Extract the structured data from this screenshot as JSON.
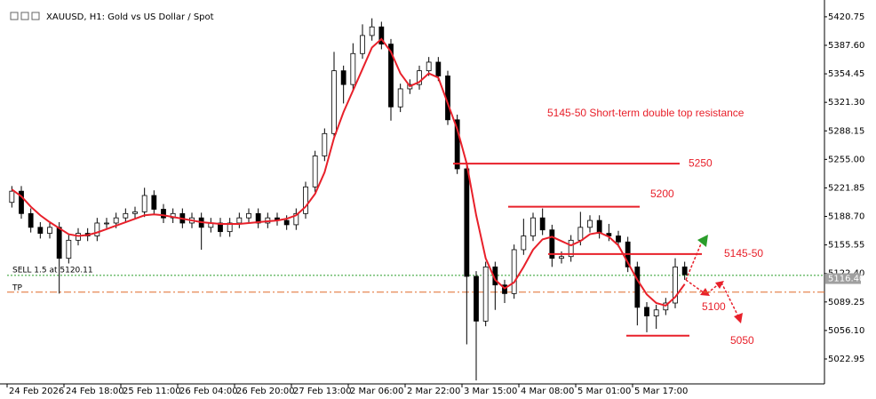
{
  "chart_data": {
    "type": "candlestick",
    "title": "XAUUSD, H1:  Gold vs US Dollar / Spot",
    "categories": [
      "24 Feb 2026",
      null,
      null,
      null,
      null,
      null,
      "24 Feb 18:00",
      null,
      null,
      null,
      null,
      null,
      "25 Feb 11:00",
      null,
      null,
      null,
      null,
      null,
      "26 Feb 04:00",
      null,
      null,
      null,
      null,
      null,
      "26 Feb 20:00",
      null,
      null,
      null,
      null,
      null,
      "27 Feb 13:00",
      null,
      null,
      null,
      null,
      null,
      "2 Mar 06:00",
      null,
      null,
      null,
      null,
      null,
      "2 Mar 22:00",
      null,
      null,
      null,
      null,
      null,
      "3 Mar 15:00",
      null,
      null,
      null,
      null,
      null,
      "4 Mar 08:00",
      null,
      null,
      null,
      null,
      null,
      "5 Mar 01:00",
      null,
      null,
      null,
      null,
      null,
      "5 Mar 17:00",
      null,
      null,
      null,
      null,
      null
    ],
    "open": [
      5205,
      5218,
      5192,
      5176,
      5169,
      5176,
      5140,
      5161,
      5169,
      5166,
      5181,
      5181,
      5187,
      5192,
      5194,
      5213,
      5197,
      5187,
      5192,
      5181,
      5187,
      5176,
      5181,
      5171,
      5181,
      5187,
      5192,
      5181,
      5187,
      5184,
      5179,
      5192,
      5223,
      5259,
      5285,
      5358,
      5342,
      5378,
      5399,
      5409,
      5389,
      5316,
      5337,
      5342,
      5358,
      5368,
      5352,
      5301,
      5244,
      5119,
      5067,
      5130,
      5109,
      5099,
      5150,
      5166,
      5187,
      5173,
      5140,
      5142,
      5161,
      5176,
      5184,
      5169,
      5166,
      5159,
      5130,
      5083,
      5073,
      5080,
      5088,
      5130
    ],
    "high": [
      5224,
      5224,
      5198,
      5182,
      5182,
      5182,
      5167,
      5175,
      5175,
      5187,
      5187,
      5193,
      5198,
      5200,
      5222,
      5219,
      5203,
      5198,
      5198,
      5193,
      5193,
      5187,
      5187,
      5187,
      5193,
      5198,
      5198,
      5193,
      5193,
      5190,
      5198,
      5229,
      5265,
      5291,
      5380,
      5364,
      5390,
      5412,
      5419,
      5415,
      5395,
      5343,
      5348,
      5364,
      5374,
      5374,
      5358,
      5307,
      5250,
      5125,
      5136,
      5136,
      5115,
      5156,
      5186,
      5193,
      5198,
      5179,
      5148,
      5167,
      5194,
      5190,
      5190,
      5180,
      5172,
      5165,
      5136,
      5089,
      5086,
      5094,
      5140,
      5136
    ],
    "low": [
      5199,
      5186,
      5170,
      5163,
      5163,
      5099,
      5134,
      5155,
      5160,
      5160,
      5175,
      5175,
      5181,
      5186,
      5188,
      5191,
      5181,
      5181,
      5175,
      5175,
      5150,
      5170,
      5165,
      5165,
      5175,
      5181,
      5175,
      5175,
      5178,
      5173,
      5173,
      5186,
      5217,
      5253,
      5279,
      5320,
      5336,
      5372,
      5393,
      5383,
      5300,
      5310,
      5331,
      5336,
      5352,
      5346,
      5295,
      5238,
      5040,
      4998,
      5061,
      5080,
      5088,
      5093,
      5144,
      5160,
      5167,
      5130,
      5134,
      5136,
      5155,
      5170,
      5163,
      5160,
      5153,
      5124,
      5062,
      5054,
      5058,
      5074,
      5082,
      5115
    ],
    "close": [
      5218,
      5192,
      5176,
      5169,
      5176,
      5140,
      5161,
      5169,
      5166,
      5181,
      5181,
      5187,
      5192,
      5194,
      5213,
      5197,
      5187,
      5192,
      5181,
      5187,
      5176,
      5181,
      5171,
      5181,
      5187,
      5192,
      5181,
      5187,
      5184,
      5179,
      5192,
      5223,
      5259,
      5285,
      5358,
      5342,
      5378,
      5399,
      5409,
      5389,
      5316,
      5337,
      5342,
      5358,
      5368,
      5352,
      5301,
      5244,
      5119,
      5067,
      5130,
      5109,
      5099,
      5150,
      5166,
      5187,
      5173,
      5140,
      5142,
      5161,
      5176,
      5184,
      5169,
      5166,
      5159,
      5130,
      5083,
      5073,
      5080,
      5088,
      5130,
      5121
    ],
    "up_color": "#ffffff",
    "down_color": "#000000",
    "moving_average": {
      "color": "#e8202a",
      "values": [
        5220,
        5212,
        5200,
        5190,
        5182,
        5175,
        5168,
        5166,
        5167,
        5170,
        5174,
        5178,
        5182,
        5186,
        5190,
        5191,
        5190,
        5188,
        5186,
        5184,
        5182,
        5181,
        5180,
        5180,
        5180,
        5181,
        5182,
        5183,
        5184,
        5186,
        5190,
        5200,
        5215,
        5240,
        5280,
        5310,
        5335,
        5360,
        5385,
        5395,
        5380,
        5355,
        5340,
        5345,
        5355,
        5350,
        5320,
        5290,
        5250,
        5190,
        5140,
        5115,
        5105,
        5112,
        5130,
        5150,
        5162,
        5165,
        5160,
        5155,
        5160,
        5168,
        5170,
        5165,
        5155,
        5135,
        5115,
        5098,
        5088,
        5085,
        5095,
        5110
      ]
    },
    "ylim": [
      4994,
      5432
    ],
    "yticks": [
      5420.75,
      {
        "value": 5387.6,
        "label": "5387.60"
      },
      5354.45,
      {
        "value": 5321.3,
        "label": "5321.30"
      },
      5288.15,
      {
        "value": 5255,
        "label": "5255.00"
      },
      5221.85,
      {
        "value": 5188.7,
        "label": "5188.70"
      },
      5155.55,
      {
        "value": 5122.4,
        "label": "5122.40"
      },
      5089.25,
      {
        "value": 5056.1,
        "label": "5056.10"
      },
      5022.95
    ],
    "levels": [
      {
        "label": "5250",
        "value": 5250
      },
      {
        "label": "5200",
        "value": 5200
      },
      {
        "label": "5145-50",
        "value": 5145
      },
      {
        "label": "5050",
        "value": 5050
      }
    ],
    "level_color": "#e8202a",
    "annotation": "5145-50 Short-term double top resistance",
    "projection_label": "5100",
    "sell_order": {
      "label": "SELL 1.5 at 5120.11",
      "value": 5120.11,
      "color": "#2a9d2a"
    },
    "take_profit": {
      "label": "TP",
      "value": 5100.6,
      "color": "#e06a2a"
    },
    "current_price": {
      "value": 5116.4,
      "label": "5116.40"
    }
  }
}
